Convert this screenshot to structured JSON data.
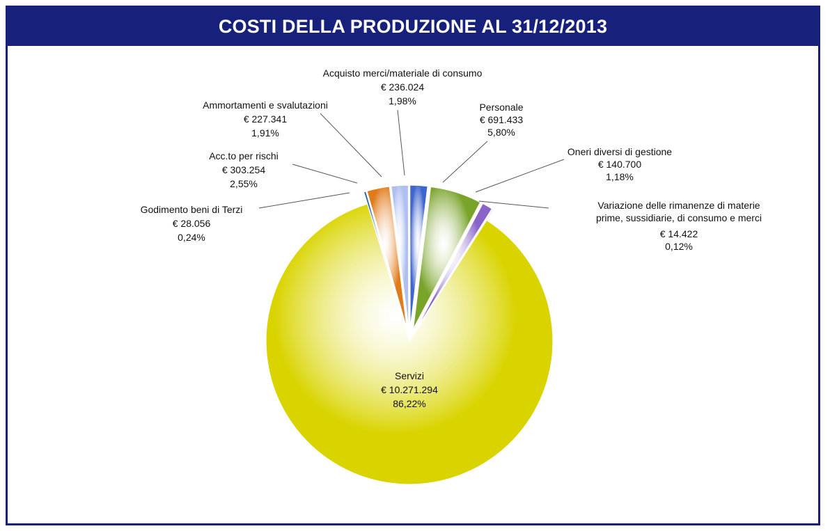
{
  "chart_data": {
    "type": "pie",
    "title": "COSTI DELLA PRODUZIONE AL 31/12/2013",
    "slices": [
      {
        "name": "Personale",
        "amount": "€ 691.433",
        "percent_label": "5,80%",
        "value": 5.8,
        "color": "#7aa32a",
        "exploded": true
      },
      {
        "name": "Oneri diversi di gestione",
        "amount": "€ 140.700",
        "percent_label": "1,18%",
        "value": 1.18,
        "color": "#8a63c9",
        "exploded": true
      },
      {
        "name": "Variazione delle rimanenze di materie prime, sussidiarie, di consumo e merci",
        "name_lines": [
          "Variazione delle rimanenze di materie",
          "prime, sussidiarie, di consumo e merci"
        ],
        "amount": "€ 14.422",
        "percent_label": "0,12%",
        "value": 0.12,
        "color": "#c9b3ea",
        "exploded": true
      },
      {
        "name": "Servizi",
        "amount": "€ 10.271.294",
        "percent_label": "86,22%",
        "value": 86.22,
        "color": "#d9d400",
        "exploded": false
      },
      {
        "name": "Godimento beni di Terzi",
        "amount": "€ 28.056",
        "percent_label": "0,24%",
        "value": 0.24,
        "color": "#1f5fa6",
        "exploded": true
      },
      {
        "name": "Acc.to per rischi",
        "amount": "€ 303.254",
        "percent_label": "2,55%",
        "value": 2.55,
        "color": "#e07b1a",
        "exploded": true
      },
      {
        "name": "Ammortamenti e svalutazioni",
        "amount": "€ 227.341",
        "percent_label": "1,91%",
        "value": 1.91,
        "color": "#aebff0",
        "exploded": true
      },
      {
        "name": "Acquisto merci/materiale di consumo",
        "amount": "€ 236.024",
        "percent_label": "1,98%",
        "value": 1.98,
        "color": "#3f66cc",
        "exploded": true
      }
    ]
  }
}
